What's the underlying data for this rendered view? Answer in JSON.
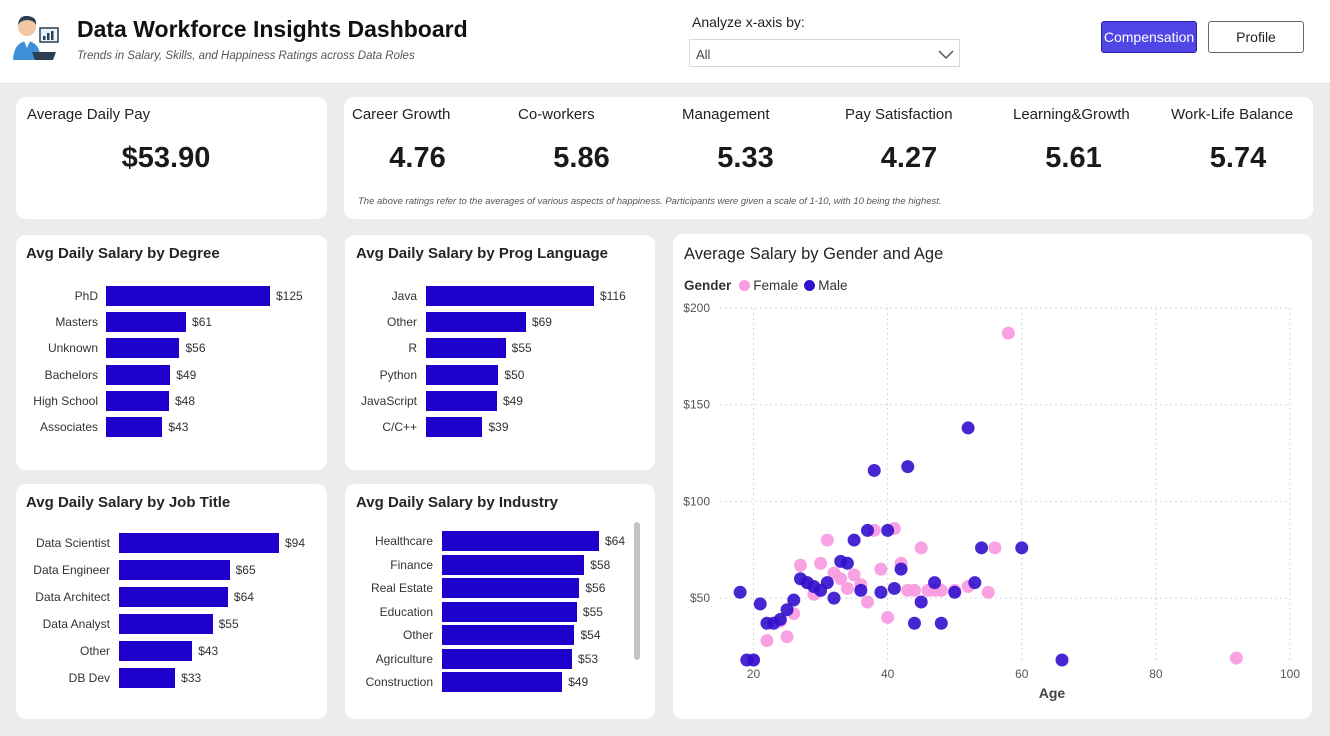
{
  "header": {
    "title": "Data Workforce Insights Dashboard",
    "subtitle": "Trends in Salary, Skills, and Happiness Ratings across Data Roles",
    "axis_label": "Analyze x-axis by:",
    "axis_value": "All",
    "compensation_label": "Compensation",
    "profile_label": "Profile",
    "accent_color": "#5046e5"
  },
  "kpis": {
    "avg_pay": {
      "label": "Average Daily Pay",
      "value": "$53.90"
    },
    "ratings": [
      {
        "label": "Career Growth",
        "value": "4.76"
      },
      {
        "label": "Co-workers",
        "value": "5.86"
      },
      {
        "label": "Management",
        "value": "5.33"
      },
      {
        "label": "Pay Satisfaction",
        "value": "4.27"
      },
      {
        "label": "Learning&Growth",
        "value": "5.61"
      },
      {
        "label": "Work-Life Balance",
        "value": "5.74"
      }
    ],
    "note": "The above ratings refer to the averages of various aspects of happiness. Participants were given a scale of 1-10, with 10 being the highest."
  },
  "chart_data": [
    {
      "type": "bar",
      "title": "Avg Daily Salary by Degree",
      "categories": [
        "PhD",
        "Masters",
        "Unknown",
        "Bachelors",
        "High School",
        "Associates"
      ],
      "values": [
        125,
        61,
        56,
        49,
        48,
        43
      ],
      "labels": [
        "$125",
        "$61",
        "$56",
        "$49",
        "$48",
        "$43"
      ],
      "color": "#1d00cc"
    },
    {
      "type": "bar",
      "title": "Avg Daily Salary by Prog Language",
      "categories": [
        "Java",
        "Other",
        "R",
        "Python",
        "JavaScript",
        "C/C++"
      ],
      "values": [
        116,
        69,
        55,
        50,
        49,
        39
      ],
      "labels": [
        "$116",
        "$69",
        "$55",
        "$50",
        "$49",
        "$39"
      ],
      "color": "#1d00cc"
    },
    {
      "type": "bar",
      "title": "Avg Daily Salary by Job Title",
      "categories": [
        "Data Scientist",
        "Data Engineer",
        "Data Architect",
        "Data Analyst",
        "Other",
        "DB Dev"
      ],
      "values": [
        94,
        65,
        64,
        55,
        43,
        33
      ],
      "labels": [
        "$94",
        "$65",
        "$64",
        "$55",
        "$43",
        "$33"
      ],
      "color": "#1d00cc"
    },
    {
      "type": "bar",
      "title": "Avg Daily Salary by Industry",
      "categories": [
        "Healthcare",
        "Finance",
        "Real Estate",
        "Education",
        "Other",
        "Agriculture",
        "Construction"
      ],
      "values": [
        64,
        58,
        56,
        55,
        54,
        53,
        49
      ],
      "labels": [
        "$64",
        "$58",
        "$56",
        "$55",
        "$54",
        "$53",
        "$49"
      ],
      "color": "#1d00cc"
    },
    {
      "type": "scatter",
      "title": "Average Salary by Gender and Age",
      "xlabel": "Age",
      "ylabel": "",
      "xlim": [
        15,
        100
      ],
      "ylim": [
        18,
        200
      ],
      "xticks": [
        20,
        40,
        60,
        80,
        100
      ],
      "yticks": [
        50,
        100,
        150,
        200
      ],
      "ytick_labels": [
        "$50",
        "$100",
        "$150",
        "$200"
      ],
      "grid": true,
      "legend_title": "Gender",
      "legend_position": "top-left",
      "series": [
        {
          "name": "Female",
          "color": "#f99de2",
          "points": [
            [
              20,
              18
            ],
            [
              22,
              28
            ],
            [
              24,
              38
            ],
            [
              25,
              30
            ],
            [
              26,
              42
            ],
            [
              27,
              67
            ],
            [
              28,
              58
            ],
            [
              29,
              52
            ],
            [
              30,
              68
            ],
            [
              31,
              80
            ],
            [
              32,
              63
            ],
            [
              33,
              60
            ],
            [
              34,
              55
            ],
            [
              35,
              62
            ],
            [
              36,
              57
            ],
            [
              37,
              48
            ],
            [
              38,
              85
            ],
            [
              39,
              65
            ],
            [
              40,
              40
            ],
            [
              41,
              86
            ],
            [
              42,
              68
            ],
            [
              43,
              54
            ],
            [
              44,
              54
            ],
            [
              45,
              76
            ],
            [
              46,
              54
            ],
            [
              47,
              54
            ],
            [
              48,
              54
            ],
            [
              50,
              54
            ],
            [
              52,
              56
            ],
            [
              55,
              53
            ],
            [
              56,
              76
            ],
            [
              58,
              187
            ],
            [
              92,
              19
            ]
          ]
        },
        {
          "name": "Male",
          "color": "#3310cc",
          "points": [
            [
              18,
              53
            ],
            [
              19,
              18
            ],
            [
              20,
              18
            ],
            [
              21,
              47
            ],
            [
              22,
              37
            ],
            [
              23,
              37
            ],
            [
              24,
              39
            ],
            [
              25,
              44
            ],
            [
              26,
              49
            ],
            [
              27,
              60
            ],
            [
              28,
              58
            ],
            [
              29,
              56
            ],
            [
              30,
              54
            ],
            [
              31,
              58
            ],
            [
              32,
              50
            ],
            [
              33,
              69
            ],
            [
              34,
              68
            ],
            [
              35,
              80
            ],
            [
              36,
              54
            ],
            [
              37,
              85
            ],
            [
              38,
              116
            ],
            [
              39,
              53
            ],
            [
              40,
              85
            ],
            [
              41,
              55
            ],
            [
              42,
              65
            ],
            [
              43,
              118
            ],
            [
              44,
              37
            ],
            [
              45,
              48
            ],
            [
              47,
              58
            ],
            [
              48,
              37
            ],
            [
              50,
              53
            ],
            [
              52,
              138
            ],
            [
              53,
              58
            ],
            [
              54,
              76
            ],
            [
              60,
              76
            ],
            [
              66,
              18
            ]
          ]
        }
      ]
    }
  ]
}
